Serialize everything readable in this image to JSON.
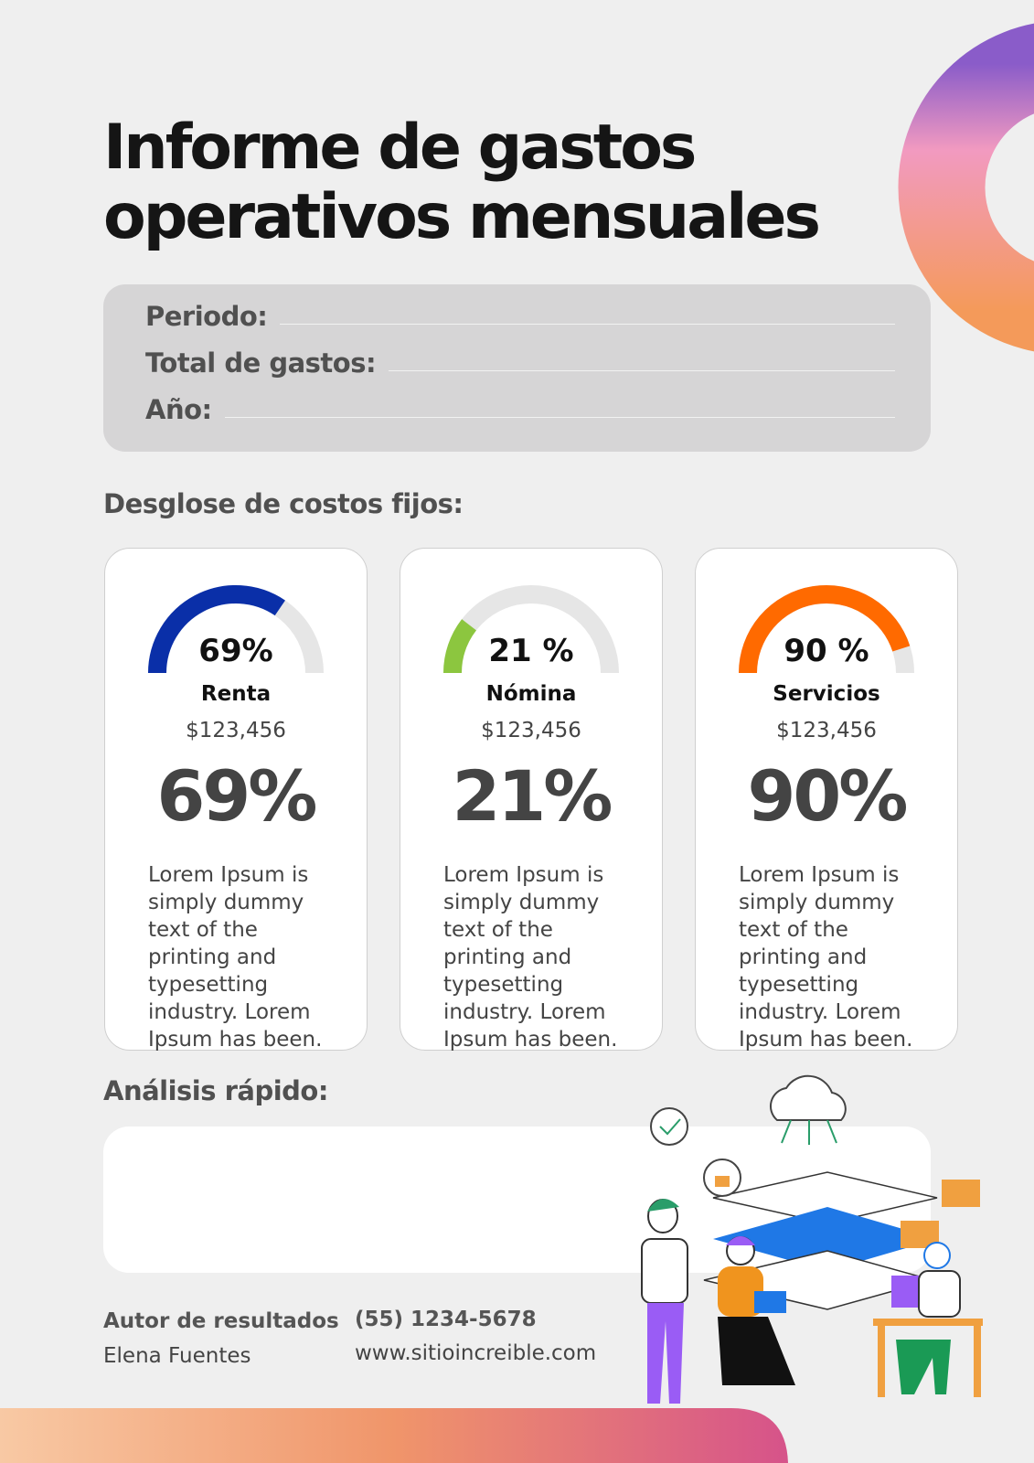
{
  "header": {
    "title_line1": "Informe de gastos",
    "title_line2": "operativos mensuales"
  },
  "form": {
    "fields": [
      "Periodo:",
      "Total de gastos:",
      "Año:"
    ]
  },
  "breakdown": {
    "heading": "Desglose de costos fijos:",
    "cards": [
      {
        "gauge_label": "69%",
        "value": 69,
        "color": "#0a2fa8",
        "name": "Renta",
        "amount": "$123,456",
        "percent_label": "69%",
        "description": "Lorem Ipsum is simply dummy text of the printing and typesetting industry. Lorem Ipsum has been."
      },
      {
        "gauge_label": "21 %",
        "value": 21,
        "color": "#8cc63f",
        "name": "Nómina",
        "amount": "$123,456",
        "percent_label": "21%",
        "description": "Lorem Ipsum is simply dummy text of the printing and typesetting industry. Lorem Ipsum has been."
      },
      {
        "gauge_label": "90 %",
        "value": 90,
        "color": "#ff6a00",
        "name": "Servicios",
        "amount": "$123,456",
        "percent_label": "90%",
        "description": "Lorem Ipsum is simply dummy text of the printing and typesetting industry. Lorem Ipsum has been."
      }
    ]
  },
  "analysis": {
    "heading": "Análisis rápido:"
  },
  "footer": {
    "author_label": "Autor de resultados",
    "author_name": "Elena Fuentes",
    "phone": "(55) 1234-5678",
    "website": "www.sitioincreible.com"
  }
}
